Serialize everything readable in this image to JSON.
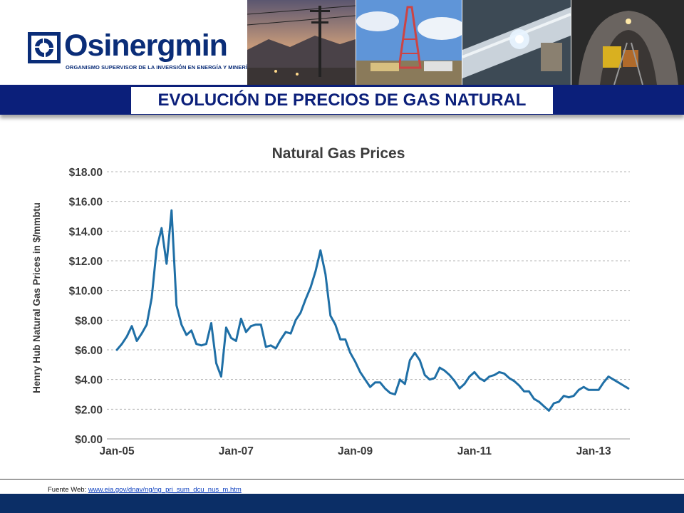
{
  "header": {
    "logo_name": "Osinergmin",
    "logo_tagline": "ORGANISMO SUPERVISOR DE LA INVERSIÓN EN ENERGÍA Y MINERÍA"
  },
  "slide": {
    "title": "EVOLUCIÓN DE PRECIOS DE GAS NATURAL"
  },
  "footer": {
    "source_label": "Fuente Web:",
    "source_url": "www.eia.gov/dnav/ng/ng_pri_sum_dcu_nus_m.htm"
  },
  "colors": {
    "brand_navy": "#0b1f7a",
    "footer_navy": "#0b2e66",
    "series_line": "#1f6fa6",
    "grid": "#b5b5b5"
  },
  "chart_data": {
    "type": "line",
    "title": "Natural Gas Prices",
    "ylabel": "Henry Hub Natural Gas Prices in $/mmbtu",
    "xlabel": "",
    "ylim": [
      0,
      18
    ],
    "xlim": [
      "2005-01",
      "2013-08"
    ],
    "y_ticks": [
      {
        "value": 0,
        "label": "$0.00"
      },
      {
        "value": 2,
        "label": "$2.00"
      },
      {
        "value": 4,
        "label": "$4.00"
      },
      {
        "value": 6,
        "label": "$6.00"
      },
      {
        "value": 8,
        "label": "$8.00"
      },
      {
        "value": 10,
        "label": "$10.00"
      },
      {
        "value": 12,
        "label": "$12.00"
      },
      {
        "value": 14,
        "label": "$14.00"
      },
      {
        "value": 16,
        "label": "$16.00"
      },
      {
        "value": 18,
        "label": "$18.00"
      }
    ],
    "x_ticks": [
      {
        "value": "2005-01",
        "label": "Jan-05"
      },
      {
        "value": "2007-01",
        "label": "Jan-07"
      },
      {
        "value": "2009-01",
        "label": "Jan-09"
      },
      {
        "value": "2011-01",
        "label": "Jan-11"
      },
      {
        "value": "2013-01",
        "label": "Jan-13"
      }
    ],
    "grid": "horizontal dashed",
    "legend": "none",
    "series": [
      {
        "points": [
          [
            "2005-01",
            6.0
          ],
          [
            "2005-02",
            6.4
          ],
          [
            "2005-03",
            6.9
          ],
          [
            "2005-04",
            7.6
          ],
          [
            "2005-05",
            6.6
          ],
          [
            "2005-06",
            7.1
          ],
          [
            "2005-07",
            7.7
          ],
          [
            "2005-08",
            9.5
          ],
          [
            "2005-09",
            12.8
          ],
          [
            "2005-10",
            14.2
          ],
          [
            "2005-11",
            11.8
          ],
          [
            "2005-12",
            15.4
          ],
          [
            "2006-01",
            9.0
          ],
          [
            "2006-02",
            7.7
          ],
          [
            "2006-03",
            7.0
          ],
          [
            "2006-04",
            7.3
          ],
          [
            "2006-05",
            6.4
          ],
          [
            "2006-06",
            6.3
          ],
          [
            "2006-07",
            6.4
          ],
          [
            "2006-08",
            7.8
          ],
          [
            "2006-09",
            5.1
          ],
          [
            "2006-10",
            4.2
          ],
          [
            "2006-11",
            7.5
          ],
          [
            "2006-12",
            6.8
          ],
          [
            "2007-01",
            6.6
          ],
          [
            "2007-02",
            8.1
          ],
          [
            "2007-03",
            7.2
          ],
          [
            "2007-04",
            7.6
          ],
          [
            "2007-05",
            7.7
          ],
          [
            "2007-06",
            7.7
          ],
          [
            "2007-07",
            6.2
          ],
          [
            "2007-08",
            6.3
          ],
          [
            "2007-09",
            6.1
          ],
          [
            "2007-10",
            6.7
          ],
          [
            "2007-11",
            7.2
          ],
          [
            "2007-12",
            7.1
          ],
          [
            "2008-01",
            8.0
          ],
          [
            "2008-02",
            8.5
          ],
          [
            "2008-03",
            9.4
          ],
          [
            "2008-04",
            10.2
          ],
          [
            "2008-05",
            11.3
          ],
          [
            "2008-06",
            12.7
          ],
          [
            "2008-07",
            11.1
          ],
          [
            "2008-08",
            8.3
          ],
          [
            "2008-09",
            7.7
          ],
          [
            "2008-10",
            6.7
          ],
          [
            "2008-11",
            6.7
          ],
          [
            "2008-12",
            5.8
          ],
          [
            "2009-01",
            5.2
          ],
          [
            "2009-02",
            4.5
          ],
          [
            "2009-03",
            4.0
          ],
          [
            "2009-04",
            3.5
          ],
          [
            "2009-05",
            3.8
          ],
          [
            "2009-06",
            3.8
          ],
          [
            "2009-07",
            3.4
          ],
          [
            "2009-08",
            3.1
          ],
          [
            "2009-09",
            3.0
          ],
          [
            "2009-10",
            4.0
          ],
          [
            "2009-11",
            3.7
          ],
          [
            "2009-12",
            5.3
          ],
          [
            "2010-01",
            5.8
          ],
          [
            "2010-02",
            5.3
          ],
          [
            "2010-03",
            4.3
          ],
          [
            "2010-04",
            4.0
          ],
          [
            "2010-05",
            4.1
          ],
          [
            "2010-06",
            4.8
          ],
          [
            "2010-07",
            4.6
          ],
          [
            "2010-08",
            4.3
          ],
          [
            "2010-09",
            3.9
          ],
          [
            "2010-10",
            3.4
          ],
          [
            "2010-11",
            3.7
          ],
          [
            "2010-12",
            4.2
          ],
          [
            "2011-01",
            4.5
          ],
          [
            "2011-02",
            4.1
          ],
          [
            "2011-03",
            3.9
          ],
          [
            "2011-04",
            4.2
          ],
          [
            "2011-05",
            4.3
          ],
          [
            "2011-06",
            4.5
          ],
          [
            "2011-07",
            4.4
          ],
          [
            "2011-08",
            4.1
          ],
          [
            "2011-09",
            3.9
          ],
          [
            "2011-10",
            3.6
          ],
          [
            "2011-11",
            3.2
          ],
          [
            "2011-12",
            3.2
          ],
          [
            "2012-01",
            2.7
          ],
          [
            "2012-02",
            2.5
          ],
          [
            "2012-03",
            2.2
          ],
          [
            "2012-04",
            1.9
          ],
          [
            "2012-05",
            2.4
          ],
          [
            "2012-06",
            2.5
          ],
          [
            "2012-07",
            2.9
          ],
          [
            "2012-08",
            2.8
          ],
          [
            "2012-09",
            2.9
          ],
          [
            "2012-10",
            3.3
          ],
          [
            "2012-11",
            3.5
          ],
          [
            "2012-12",
            3.3
          ],
          [
            "2013-01",
            3.3
          ],
          [
            "2013-02",
            3.3
          ],
          [
            "2013-03",
            3.8
          ],
          [
            "2013-04",
            4.2
          ],
          [
            "2013-05",
            4.0
          ],
          [
            "2013-06",
            3.8
          ],
          [
            "2013-07",
            3.6
          ],
          [
            "2013-08",
            3.4
          ]
        ]
      }
    ]
  }
}
